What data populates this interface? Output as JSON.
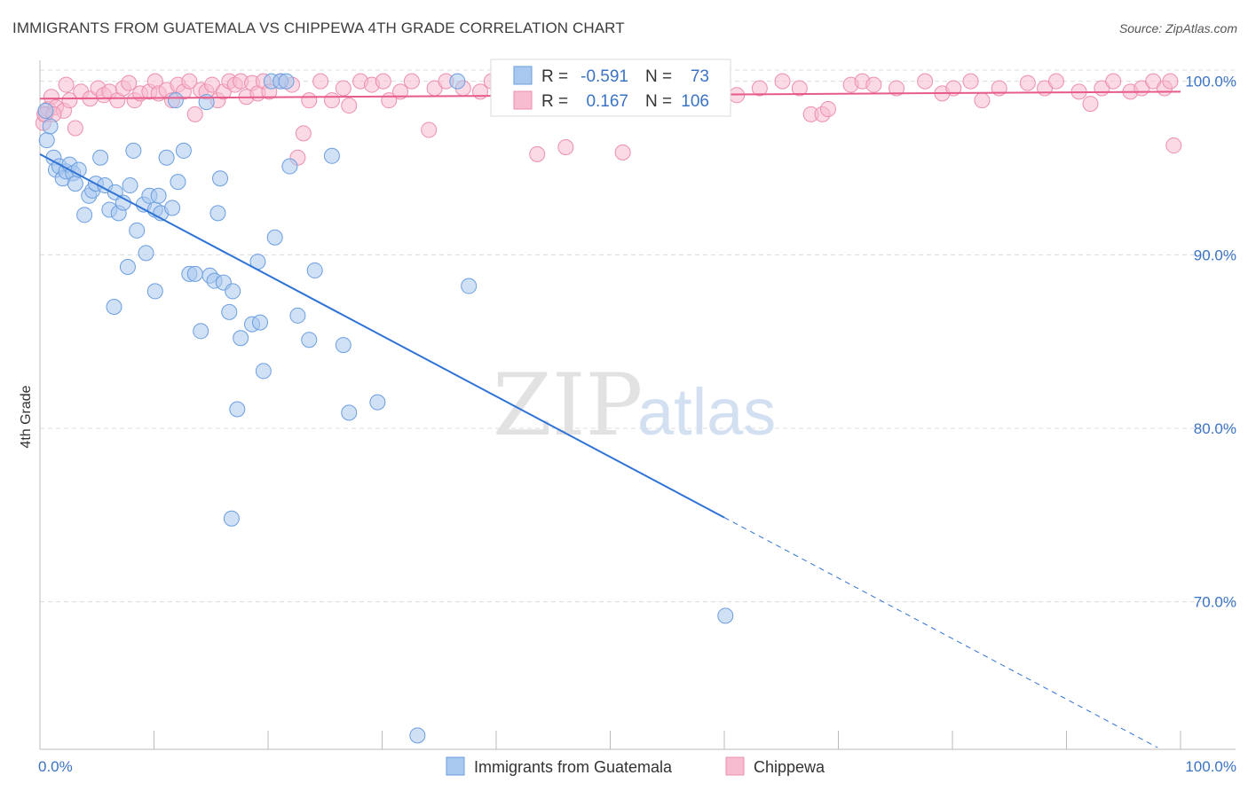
{
  "header": {
    "title": "IMMIGRANTS FROM GUATEMALA VS CHIPPEWA 4TH GRADE CORRELATION CHART",
    "source": "Source: ZipAtlas.com"
  },
  "watermark": {
    "zip": "ZIP",
    "atlas": "atlas"
  },
  "colors": {
    "blue": "#a9c8ef",
    "blue_stroke": "#6b9ee0",
    "blue_line": "#2f73d4",
    "pink": "#f7bccf",
    "pink_stroke": "#ec8fae",
    "pink_line": "#e65b8a",
    "grid": "#dcdcdc",
    "tick_text": "#3b73c4"
  },
  "legend": {
    "r_label": "R =",
    "n_label": "N =",
    "rows": [
      {
        "series": "blue",
        "r": "-0.591",
        "n": "73"
      },
      {
        "series": "pink",
        "r": "0.167",
        "n": "106"
      }
    ]
  },
  "bottom_legend": [
    {
      "series": "blue",
      "label": "Immigrants from Guatemala"
    },
    {
      "series": "pink",
      "label": "Chippewa"
    }
  ],
  "chart_data": {
    "type": "scatter",
    "title": "IMMIGRANTS FROM GUATEMALA VS CHIPPEWA 4TH GRADE CORRELATION CHART",
    "xlabel": "",
    "ylabel": "4th Grade",
    "xlim": [
      0,
      100
    ],
    "ylim": [
      61.5,
      100.8
    ],
    "x_tick_labels": [
      "0.0%",
      "100.0%"
    ],
    "y_ticks": [
      70,
      80,
      90,
      100
    ],
    "y_tick_labels": [
      "70.0%",
      "80.0%",
      "90.0%",
      "100.0%"
    ],
    "grid": true,
    "legend_position": "top-center",
    "series": [
      {
        "name": "Immigrants from Guatemala",
        "color": "#a9c8ef",
        "R": -0.591,
        "N": 73,
        "trend": {
          "x0": 0,
          "y0": 95.8,
          "x1": 100,
          "y1": 60.9,
          "solid_until_x": 60
        },
        "points": [
          [
            0.5,
            98.3
          ],
          [
            0.6,
            96.6
          ],
          [
            0.9,
            97.4
          ],
          [
            1.2,
            95.6
          ],
          [
            1.4,
            94.9
          ],
          [
            1.7,
            95.1
          ],
          [
            2.0,
            94.4
          ],
          [
            2.3,
            94.8
          ],
          [
            2.6,
            95.2
          ],
          [
            2.9,
            94.7
          ],
          [
            3.1,
            94.1
          ],
          [
            3.4,
            94.9
          ],
          [
            3.9,
            92.3
          ],
          [
            4.3,
            93.4
          ],
          [
            4.6,
            93.7
          ],
          [
            4.9,
            94.1
          ],
          [
            5.3,
            95.6
          ],
          [
            5.7,
            94.0
          ],
          [
            6.1,
            92.6
          ],
          [
            6.6,
            93.6
          ],
          [
            6.9,
            92.4
          ],
          [
            7.3,
            93.0
          ],
          [
            7.9,
            94.0
          ],
          [
            8.2,
            96.0
          ],
          [
            8.5,
            91.4
          ],
          [
            9.1,
            92.9
          ],
          [
            9.6,
            93.4
          ],
          [
            10.1,
            92.6
          ],
          [
            10.6,
            92.4
          ],
          [
            11.1,
            95.6
          ],
          [
            11.6,
            92.7
          ],
          [
            11.9,
            98.9
          ],
          [
            12.1,
            94.2
          ],
          [
            12.6,
            96.0
          ],
          [
            13.1,
            88.9
          ],
          [
            13.6,
            88.9
          ],
          [
            14.1,
            85.6
          ],
          [
            14.6,
            98.8
          ],
          [
            14.9,
            88.8
          ],
          [
            15.3,
            88.5
          ],
          [
            15.6,
            92.4
          ],
          [
            15.8,
            94.4
          ],
          [
            16.1,
            88.4
          ],
          [
            16.6,
            86.7
          ],
          [
            16.9,
            87.9
          ],
          [
            17.3,
            81.1
          ],
          [
            17.6,
            85.2
          ],
          [
            18.6,
            86.0
          ],
          [
            19.1,
            89.6
          ],
          [
            19.3,
            86.1
          ],
          [
            19.6,
            83.3
          ],
          [
            20.6,
            91.0
          ],
          [
            20.3,
            100.0
          ],
          [
            21.1,
            100.0
          ],
          [
            21.6,
            100.0
          ],
          [
            21.9,
            95.1
          ],
          [
            22.6,
            86.5
          ],
          [
            23.6,
            85.1
          ],
          [
            24.1,
            89.1
          ],
          [
            25.6,
            95.7
          ],
          [
            26.6,
            84.8
          ],
          [
            27.1,
            80.9
          ],
          [
            29.6,
            81.5
          ],
          [
            33.1,
            62.3
          ],
          [
            36.6,
            100.0
          ],
          [
            37.6,
            88.2
          ],
          [
            60.1,
            69.2
          ],
          [
            6.5,
            87.0
          ],
          [
            7.7,
            89.3
          ],
          [
            9.3,
            90.1
          ],
          [
            10.1,
            87.9
          ],
          [
            16.8,
            74.8
          ],
          [
            10.4,
            93.4
          ]
        ]
      },
      {
        "name": "Chippewa",
        "color": "#f7bccf",
        "R": 0.167,
        "N": 106,
        "trend": {
          "x0": 0,
          "y0": 99.0,
          "x1": 100,
          "y1": 99.4
        },
        "points": [
          [
            0.3,
            97.6
          ],
          [
            0.5,
            98.1
          ],
          [
            0.7,
            98.4
          ],
          [
            1.0,
            99.1
          ],
          [
            1.4,
            98.5
          ],
          [
            2.1,
            98.3
          ],
          [
            2.6,
            98.9
          ],
          [
            3.1,
            97.3
          ],
          [
            3.6,
            99.4
          ],
          [
            4.4,
            99.0
          ],
          [
            5.1,
            99.6
          ],
          [
            5.6,
            99.2
          ],
          [
            6.1,
            99.4
          ],
          [
            6.8,
            98.9
          ],
          [
            7.3,
            99.6
          ],
          [
            7.8,
            99.9
          ],
          [
            8.3,
            98.9
          ],
          [
            8.8,
            99.3
          ],
          [
            9.6,
            99.4
          ],
          [
            10.1,
            100.0
          ],
          [
            10.4,
            99.3
          ],
          [
            11.1,
            99.5
          ],
          [
            11.6,
            98.9
          ],
          [
            12.1,
            99.8
          ],
          [
            12.6,
            99.4
          ],
          [
            13.1,
            100.0
          ],
          [
            13.6,
            98.1
          ],
          [
            14.1,
            99.5
          ],
          [
            14.6,
            99.4
          ],
          [
            15.1,
            99.8
          ],
          [
            15.6,
            98.9
          ],
          [
            16.1,
            99.4
          ],
          [
            16.6,
            100.0
          ],
          [
            17.1,
            99.8
          ],
          [
            17.6,
            100.0
          ],
          [
            18.1,
            99.1
          ],
          [
            18.6,
            99.9
          ],
          [
            19.1,
            99.3
          ],
          [
            19.6,
            100.0
          ],
          [
            20.1,
            99.4
          ],
          [
            21.1,
            100.0
          ],
          [
            22.1,
            99.8
          ],
          [
            22.6,
            95.6
          ],
          [
            23.1,
            97.0
          ],
          [
            23.6,
            98.9
          ],
          [
            24.6,
            100.0
          ],
          [
            25.6,
            98.9
          ],
          [
            26.6,
            99.6
          ],
          [
            27.1,
            98.6
          ],
          [
            28.1,
            100.0
          ],
          [
            29.1,
            99.8
          ],
          [
            30.1,
            100.0
          ],
          [
            30.6,
            98.9
          ],
          [
            31.6,
            99.4
          ],
          [
            32.6,
            100.0
          ],
          [
            34.1,
            97.2
          ],
          [
            34.6,
            99.6
          ],
          [
            35.6,
            100.0
          ],
          [
            37.1,
            99.6
          ],
          [
            38.6,
            99.4
          ],
          [
            39.6,
            100.0
          ],
          [
            41.1,
            99.3
          ],
          [
            42.1,
            99.6
          ],
          [
            43.6,
            95.8
          ],
          [
            44.1,
            99.4
          ],
          [
            46.1,
            96.2
          ],
          [
            47.1,
            99.4
          ],
          [
            49.6,
            100.0
          ],
          [
            51.1,
            95.9
          ],
          [
            53.1,
            99.2
          ],
          [
            55.1,
            99.4
          ],
          [
            56.6,
            100.0
          ],
          [
            58.6,
            100.0
          ],
          [
            61.1,
            99.2
          ],
          [
            63.1,
            99.6
          ],
          [
            65.1,
            100.0
          ],
          [
            66.6,
            99.6
          ],
          [
            67.6,
            98.1
          ],
          [
            68.6,
            98.1
          ],
          [
            69.1,
            98.4
          ],
          [
            71.1,
            99.8
          ],
          [
            72.1,
            100.0
          ],
          [
            73.1,
            99.8
          ],
          [
            75.1,
            99.6
          ],
          [
            77.6,
            100.0
          ],
          [
            79.1,
            99.3
          ],
          [
            80.1,
            99.6
          ],
          [
            81.6,
            100.0
          ],
          [
            82.6,
            98.9
          ],
          [
            84.1,
            99.6
          ],
          [
            86.6,
            99.9
          ],
          [
            88.1,
            99.6
          ],
          [
            89.1,
            100.0
          ],
          [
            91.1,
            99.4
          ],
          [
            92.1,
            98.7
          ],
          [
            93.1,
            99.6
          ],
          [
            94.1,
            100.0
          ],
          [
            95.6,
            99.4
          ],
          [
            96.6,
            99.6
          ],
          [
            97.6,
            100.0
          ],
          [
            98.6,
            99.6
          ],
          [
            99.1,
            100.0
          ],
          [
            99.4,
            96.3
          ],
          [
            0.4,
            98.1
          ],
          [
            1.2,
            98.1
          ],
          [
            2.3,
            99.8
          ]
        ]
      }
    ]
  }
}
